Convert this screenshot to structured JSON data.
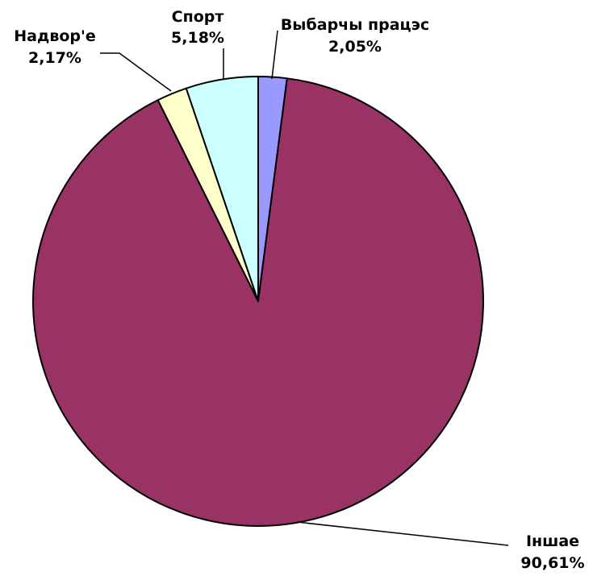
{
  "chart_data": {
    "type": "pie",
    "title": "",
    "slices": [
      {
        "label": "Выбарчы працэс",
        "value": 2.05,
        "value_label": "2,05%",
        "color": "#9999ff"
      },
      {
        "label": "Іншае",
        "value": 90.61,
        "value_label": "90,61%",
        "color": "#993366"
      },
      {
        "label": "Надвор'е",
        "value": 2.17,
        "value_label": "2,17%",
        "color": "#ffffcc"
      },
      {
        "label": "Спорт",
        "value": 5.18,
        "value_label": "5,18%",
        "color": "#ccffff"
      }
    ],
    "start_angle_deg": 0,
    "direction": "clockwise",
    "legend": "none",
    "labels": "outside with leader lines"
  }
}
